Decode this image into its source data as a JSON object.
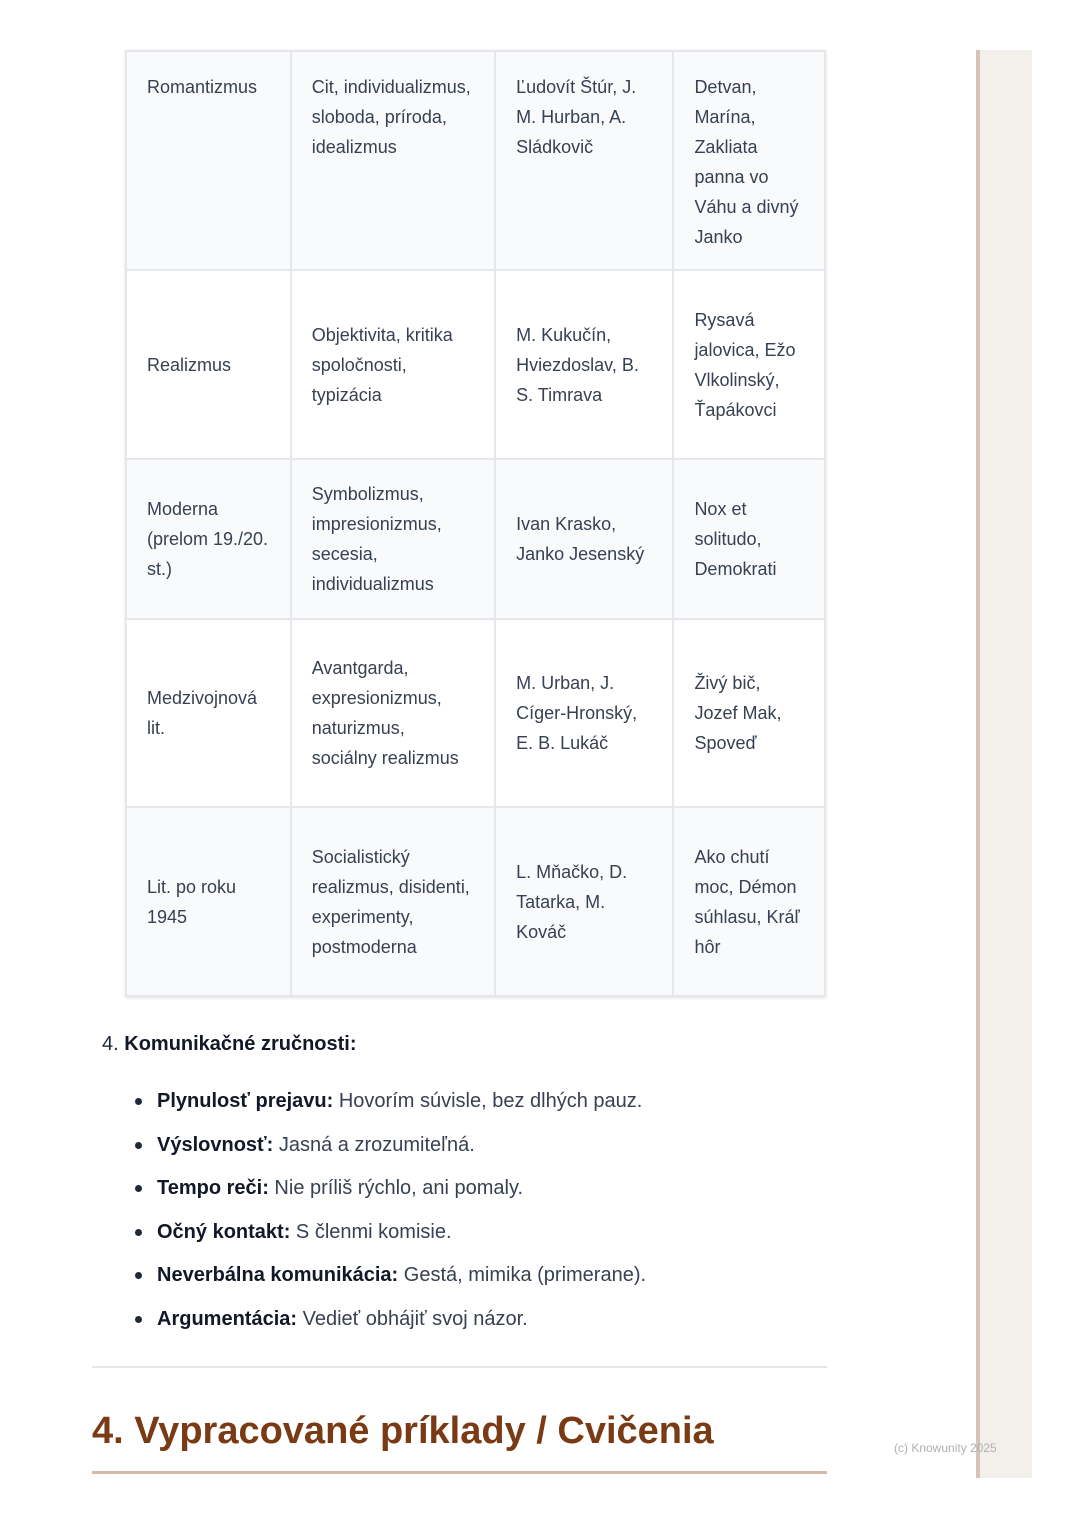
{
  "table": {
    "rows": [
      [
        "Romantizmus",
        "Cit, individualizmus, sloboda, príroda, idealizmus",
        "Ľudovít Štúr, J. M. Hurban, A. Sládkovič",
        "Detvan, Marína, Zakliata panna vo Váhu a divný Janko"
      ],
      [
        "Realizmus",
        "Objektivita, kritika spoločnosti, typizácia",
        "M. Kukučín, Hviezdoslav, B. S. Timrava",
        "Rysavá jalovica, Ežo Vlkolinský, Ťapákovci"
      ],
      [
        "Moderna (prelom 19./20. st.)",
        "Symbolizmus, impresionizmus, secesia, individualizmus",
        "Ivan Krasko, Janko Jesenský",
        "Nox et solitudo, Demokrati"
      ],
      [
        "Medzivojnová lit.",
        "Avantgarda, expresionizmus, naturizmus, sociálny realizmus",
        "M. Urban, J. Cíger-Hronský, E. B. Lukáč",
        "Živý bič, Jozef Mak, Spoveď"
      ],
      [
        "Lit. po roku 1945",
        "Socialistický realizmus, disidenti, experimenty, postmoderna",
        "L. Mňačko, D. Tatarka, M. Kováč",
        "Ako chutí moc, Démon súhlasu, Kráľ hôr"
      ]
    ]
  },
  "section": {
    "number": "4.",
    "title": "Komunikačné zručnosti:"
  },
  "bullets": [
    {
      "term": "Plynulosť prejavu:",
      "text": " Hovorím súvisle, bez dlhých pauz."
    },
    {
      "term": "Výslovnosť:",
      "text": " Jasná a zrozumiteľná."
    },
    {
      "term": "Tempo reči:",
      "text": " Nie príliš rýchlo, ani pomaly."
    },
    {
      "term": "Očný kontakt:",
      "text": " S členmi komisie."
    },
    {
      "term": "Neverbálna komunikácia:",
      "text": " Gestá, mimika (primerane)."
    },
    {
      "term": "Argumentácia:",
      "text": " Vedieť obhájiť svoj názor."
    }
  ],
  "heading": "4. Vypracované príklady / Cvičenia",
  "watermark": "(c) Knowunity 2025",
  "colors": {
    "heading": "#7a3a14",
    "accent_line": "#d6b8a8",
    "side_panel": "#f3efeb"
  }
}
